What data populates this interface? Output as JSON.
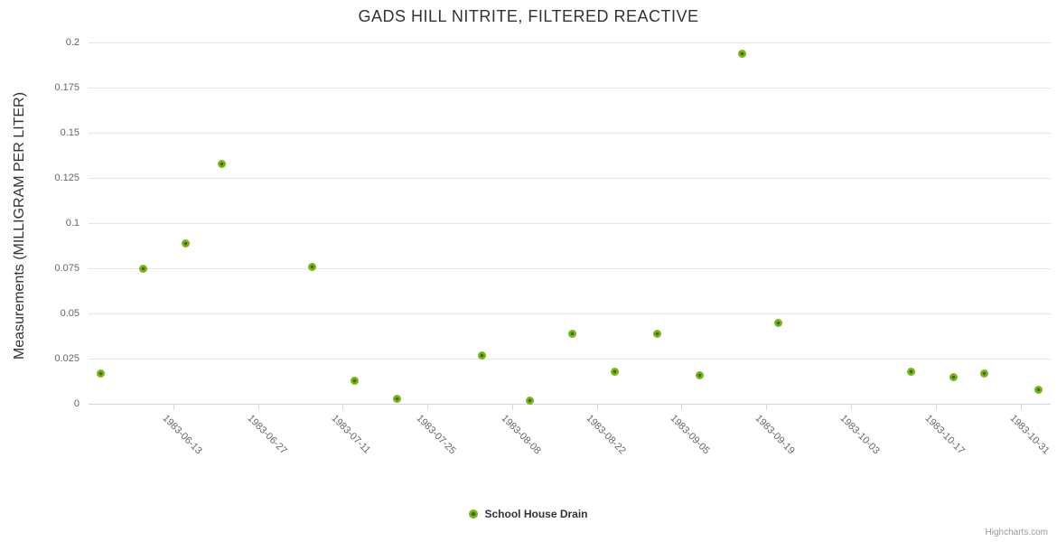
{
  "chart_data": {
    "type": "scatter",
    "title": "GADS HILL NITRITE, FILTERED REACTIVE",
    "xlabel": "",
    "ylabel": "Measurements (MILLIGRAM PER LITER)",
    "ylim": [
      0,
      0.2
    ],
    "y_ticks": [
      0,
      0.025,
      0.05,
      0.075,
      0.1,
      0.125,
      0.15,
      0.175,
      0.2
    ],
    "x_ticks": [
      "1983-06-13",
      "1983-06-27",
      "1983-07-11",
      "1983-07-25",
      "1983-08-08",
      "1983-08-22",
      "1983-09-05",
      "1983-09-19",
      "1983-10-03",
      "1983-10-17",
      "1983-10-31"
    ],
    "x_range": [
      "1983-05-30",
      "1983-11-05"
    ],
    "grid": "horizontal",
    "legend_position": "bottom-center",
    "credits": "Highcharts.com",
    "series": [
      {
        "name": "School House Drain",
        "points": [
          {
            "date": "1983-06-01",
            "value": 0.017
          },
          {
            "date": "1983-06-08",
            "value": 0.075
          },
          {
            "date": "1983-06-15",
            "value": 0.089
          },
          {
            "date": "1983-06-21",
            "value": 0.133
          },
          {
            "date": "1983-07-06",
            "value": 0.076
          },
          {
            "date": "1983-07-13",
            "value": 0.013
          },
          {
            "date": "1983-07-20",
            "value": 0.003
          },
          {
            "date": "1983-08-03",
            "value": 0.027
          },
          {
            "date": "1983-08-11",
            "value": 0.002
          },
          {
            "date": "1983-08-18",
            "value": 0.039
          },
          {
            "date": "1983-08-25",
            "value": 0.018
          },
          {
            "date": "1983-09-01",
            "value": 0.039
          },
          {
            "date": "1983-09-08",
            "value": 0.016
          },
          {
            "date": "1983-09-15",
            "value": 0.194
          },
          {
            "date": "1983-09-21",
            "value": 0.045
          },
          {
            "date": "1983-10-13",
            "value": 0.018
          },
          {
            "date": "1983-10-20",
            "value": 0.015
          },
          {
            "date": "1983-10-25",
            "value": 0.017
          },
          {
            "date": "1983-11-03",
            "value": 0.008
          }
        ]
      }
    ],
    "colors": {
      "marker_outer": "#7db31a",
      "marker_inner": "#386f00",
      "title_text": "#333333",
      "axis_label_text": "#666666",
      "legend_text": "#333333",
      "credits_text": "#999999",
      "gridline": "#e6e6e6",
      "axis_line": "#ccd6eb"
    }
  }
}
